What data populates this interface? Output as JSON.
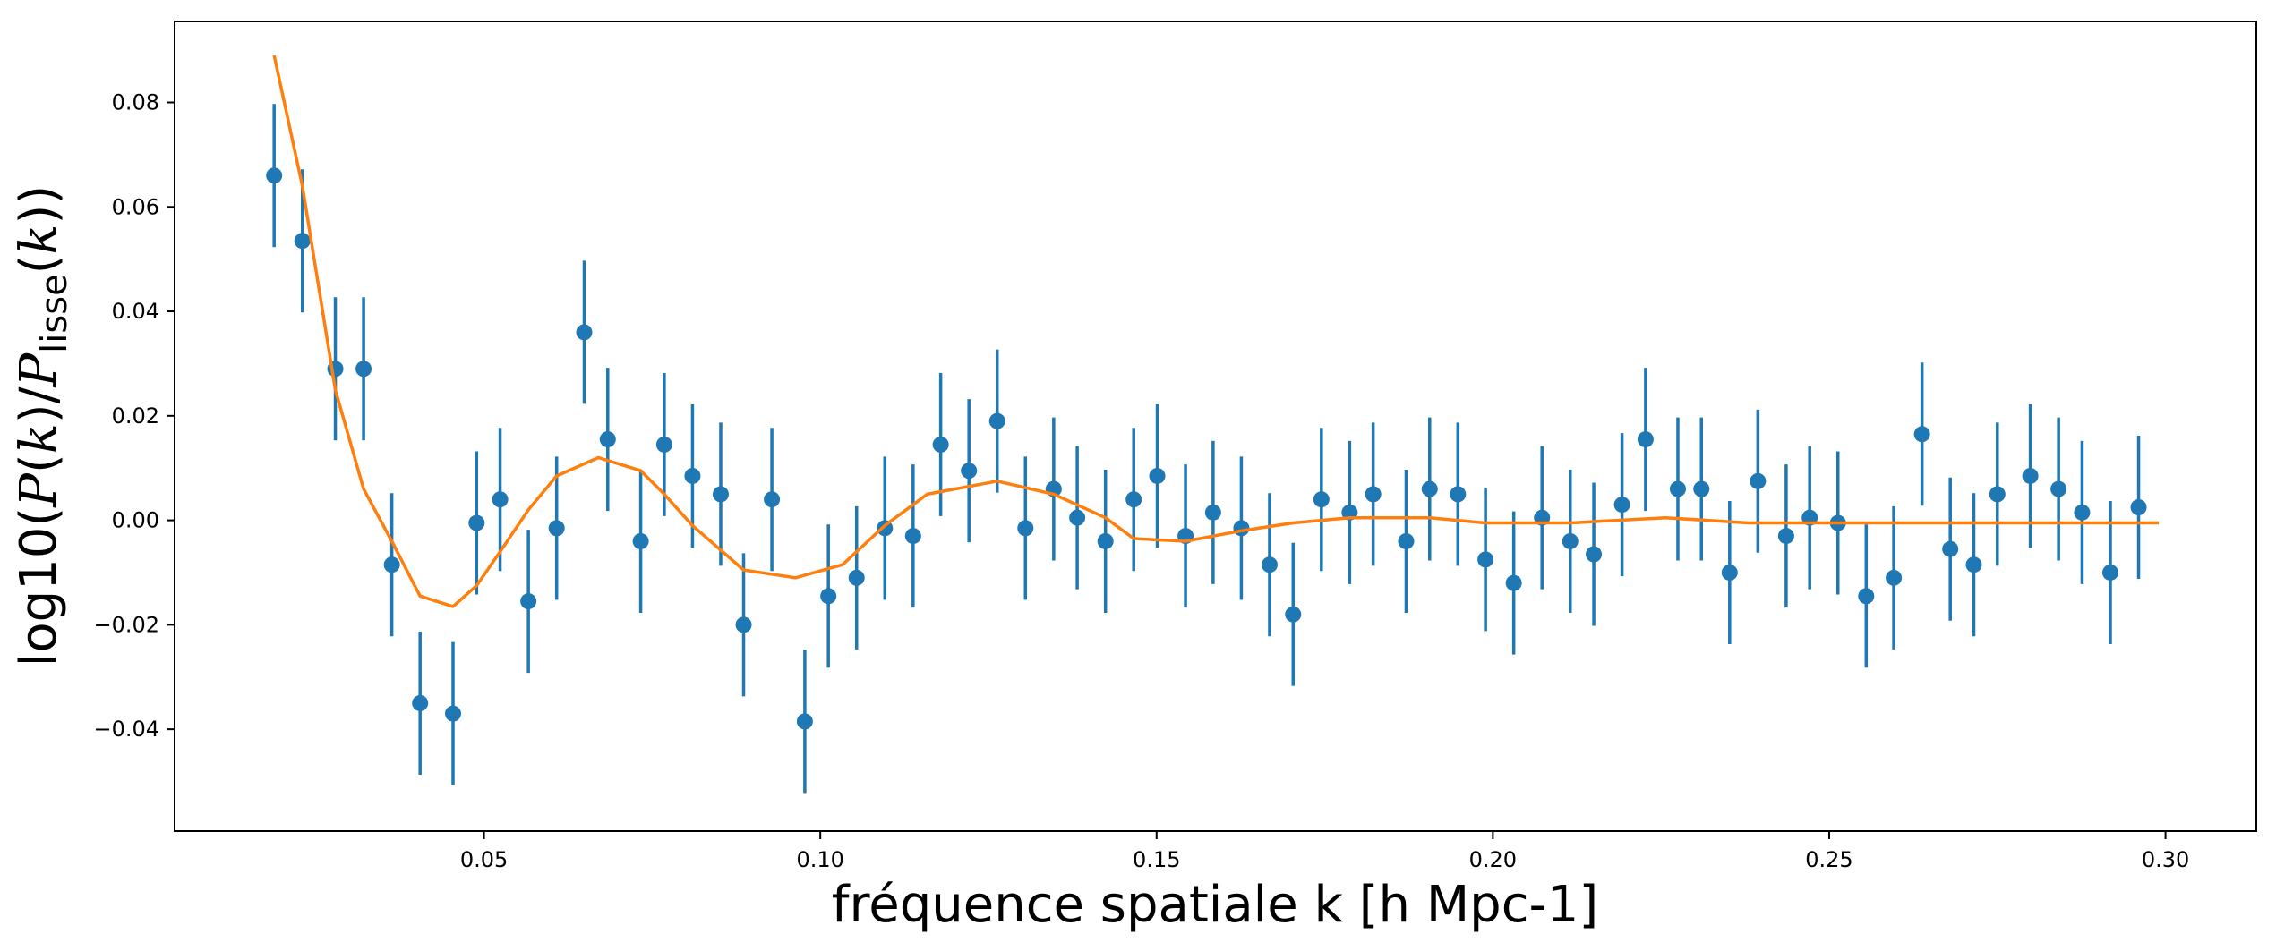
{
  "chart_data": {
    "type": "scatter",
    "title": "",
    "xlabel": "fréquence spatiale k [h Mpc-1]",
    "ylabel": {
      "prefix": "log10(",
      "p_num": "P",
      "paren_open": "(",
      "k_num": "k",
      "slash": ")/",
      "p_den": "P",
      "sub": "lisse",
      "k_den": "k",
      "suffix": "))"
    },
    "xlim": [
      0.004,
      0.3135
    ],
    "ylim": [
      -0.0595,
      0.0955
    ],
    "x_ticks": [
      0.05,
      0.1,
      0.15,
      0.2,
      0.25,
      0.3
    ],
    "x_tick_labels": [
      "0.05",
      "0.10",
      "0.15",
      "0.20",
      "0.25",
      "0.30"
    ],
    "y_ticks": [
      -0.04,
      -0.02,
      0.0,
      0.02,
      0.04,
      0.06,
      0.08
    ],
    "y_tick_labels": [
      "−0.04",
      "−0.02",
      "0.00",
      "0.02",
      "0.04",
      "0.06",
      "0.08"
    ],
    "grid": false,
    "colors": {
      "points": "#1f77b4",
      "model": "#ff7f0e",
      "axes": "#000000"
    },
    "series": [
      {
        "kind": "errorbar",
        "x": [
          0.0188,
          0.023,
          0.0279,
          0.0321,
          0.0363,
          0.0405,
          0.0454,
          0.0489,
          0.0524,
          0.0566,
          0.0608,
          0.0649,
          0.0684,
          0.0733,
          0.0768,
          0.081,
          0.0852,
          0.0886,
          0.0928,
          0.0977,
          0.1012,
          0.1054,
          0.1096,
          0.1138,
          0.1179,
          0.1221,
          0.1263,
          0.1305,
          0.1347,
          0.1382,
          0.1424,
          0.1466,
          0.1501,
          0.1543,
          0.1584,
          0.1626,
          0.1668,
          0.1703,
          0.1745,
          0.1787,
          0.1822,
          0.1871,
          0.1906,
          0.1948,
          0.1989,
          0.2031,
          0.2073,
          0.2115,
          0.215,
          0.2192,
          0.2227,
          0.2275,
          0.231,
          0.2352,
          0.2394,
          0.2436,
          0.2471,
          0.2513,
          0.2555,
          0.2596,
          0.2638,
          0.268,
          0.2715,
          0.275,
          0.2799,
          0.2841,
          0.2876,
          0.2918,
          0.296
        ],
        "y": [
          0.066,
          0.0535,
          0.029,
          0.029,
          -0.0085,
          -0.035,
          -0.037,
          -0.0005,
          0.004,
          -0.0155,
          -0.0015,
          0.036,
          0.0155,
          -0.004,
          0.0145,
          0.0085,
          0.005,
          -0.02,
          0.004,
          -0.0385,
          -0.0145,
          -0.011,
          -0.0015,
          -0.003,
          0.0145,
          0.0095,
          0.019,
          -0.0015,
          0.006,
          0.0005,
          -0.004,
          0.004,
          0.0085,
          -0.003,
          0.0015,
          -0.0015,
          -0.0085,
          -0.018,
          0.004,
          0.0015,
          0.005,
          -0.004,
          0.006,
          0.005,
          -0.0075,
          -0.012,
          0.0005,
          -0.004,
          -0.0065,
          0.003,
          0.0155,
          0.006,
          0.006,
          -0.01,
          0.0075,
          -0.003,
          0.0005,
          -0.0005,
          -0.0145,
          -0.011,
          0.0165,
          -0.0055,
          -0.0085,
          0.005,
          0.0085,
          0.006,
          0.0015,
          -0.01,
          0.0025
        ],
        "yerr": 0.0137
      },
      {
        "kind": "line",
        "x": [
          0.0188,
          0.023,
          0.0279,
          0.0321,
          0.0363,
          0.0405,
          0.0454,
          0.0489,
          0.0524,
          0.0566,
          0.0608,
          0.067,
          0.0733,
          0.0768,
          0.081,
          0.0886,
          0.0963,
          0.1033,
          0.1096,
          0.1159,
          0.1263,
          0.1347,
          0.1424,
          0.1466,
          0.1543,
          0.1626,
          0.1703,
          0.1787,
          0.1906,
          0.1989,
          0.2115,
          0.2257,
          0.238,
          0.25,
          0.266,
          0.28,
          0.299
        ],
        "y": [
          0.089,
          0.064,
          0.025,
          0.006,
          -0.004,
          -0.0145,
          -0.0165,
          -0.0125,
          -0.006,
          0.002,
          0.0085,
          0.012,
          0.0095,
          0.005,
          -0.001,
          -0.0095,
          -0.011,
          -0.0085,
          -0.001,
          0.005,
          0.0075,
          0.005,
          0.0005,
          -0.0035,
          -0.004,
          -0.002,
          -0.0005,
          0.0005,
          0.0005,
          -0.0005,
          -0.0005,
          0.0005,
          -0.0005,
          -0.0005,
          -0.0005,
          -0.0005,
          -0.0005
        ]
      }
    ]
  }
}
